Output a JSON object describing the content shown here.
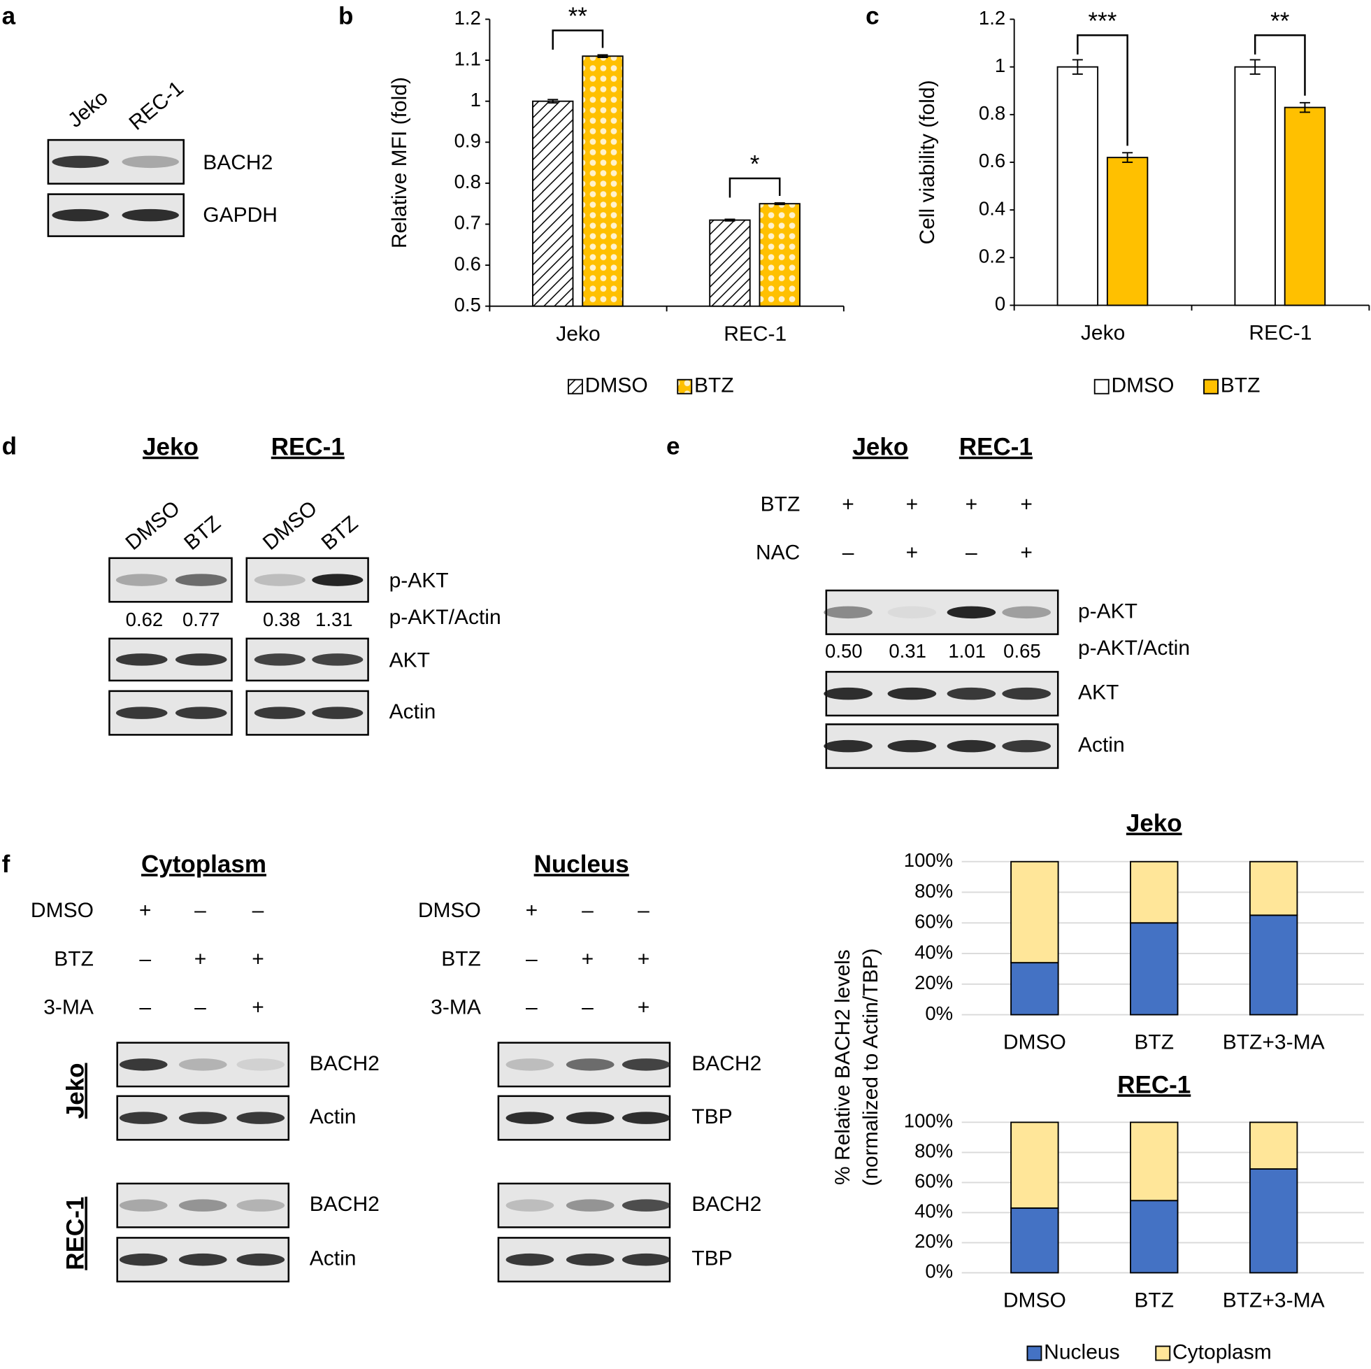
{
  "panel_labels": [
    "a",
    "b",
    "c",
    "d",
    "e",
    "f"
  ],
  "panel_a": {
    "lanes": [
      "Jeko",
      "REC-1"
    ],
    "bands": [
      "BACH2",
      "GAPDH"
    ]
  },
  "panel_d": {
    "groups": [
      "Jeko",
      "REC-1"
    ],
    "lanes": [
      "DMSO",
      "BTZ",
      "DMSO",
      "BTZ"
    ],
    "bands": [
      "p-AKT",
      "AKT",
      "Actin"
    ],
    "ratio_label": "p-AKT/Actin",
    "ratios": [
      "0.62",
      "0.77",
      "0.38",
      "1.31"
    ]
  },
  "panel_e": {
    "groups": [
      "Jeko",
      "REC-1"
    ],
    "treatments": [
      {
        "name": "BTZ",
        "marks": [
          "+",
          "+",
          "+",
          "+"
        ]
      },
      {
        "name": "NAC",
        "marks": [
          "–",
          "+",
          "–",
          "+"
        ]
      }
    ],
    "bands": [
      "p-AKT",
      "AKT",
      "Actin"
    ],
    "ratio_label": "p-AKT/Actin",
    "ratios": [
      "0.50",
      "0.31",
      "1.01",
      "0.65"
    ]
  },
  "panel_f": {
    "cell_lines": [
      "Jeko",
      "REC-1"
    ],
    "fractions": [
      {
        "title": "Cytoplasm",
        "treatments": [
          {
            "name": "DMSO",
            "marks": [
              "+",
              "–",
              "–"
            ]
          },
          {
            "name": "BTZ",
            "marks": [
              "–",
              "+",
              "+"
            ]
          },
          {
            "name": "3-MA",
            "marks": [
              "–",
              "–",
              "+"
            ]
          }
        ],
        "bands": [
          "BACH2",
          "Actin",
          "BACH2",
          "Actin"
        ]
      },
      {
        "title": "Nucleus",
        "treatments": [
          {
            "name": "DMSO",
            "marks": [
              "+",
              "–",
              "–"
            ]
          },
          {
            "name": "BTZ",
            "marks": [
              "–",
              "+",
              "+"
            ]
          },
          {
            "name": "3-MA",
            "marks": [
              "–",
              "–",
              "+"
            ]
          }
        ],
        "bands": [
          "BACH2",
          "TBP",
          "BACH2",
          "TBP"
        ]
      }
    ]
  },
  "chart_data": [
    {
      "type": "bar",
      "ylabel": "Relative MFI (fold)",
      "categories": [
        "Jeko",
        "REC-1"
      ],
      "series": [
        {
          "name": "DMSO",
          "color": "#ffffff",
          "pattern": "hatch",
          "values": [
            1.0,
            0.71
          ],
          "errors": [
            0.004,
            0.002
          ]
        },
        {
          "name": "BTZ",
          "color": "#ffc000",
          "pattern": "dots",
          "values": [
            1.11,
            0.75
          ],
          "errors": [
            0.003,
            0.002
          ]
        }
      ],
      "ylim": [
        0.5,
        1.2
      ],
      "yticks": [
        0.5,
        0.6,
        0.7,
        0.8,
        0.9,
        1,
        1.1,
        1.2
      ],
      "annotations": [
        "**",
        "*"
      ],
      "legend": "bottom"
    },
    {
      "type": "bar",
      "ylabel": "Cell viability (fold)",
      "categories": [
        "Jeko",
        "REC-1"
      ],
      "series": [
        {
          "name": "DMSO",
          "color": "#ffffff",
          "values": [
            1,
            1
          ],
          "errors": [
            0.03,
            0.03
          ]
        },
        {
          "name": "BTZ",
          "color": "#ffc000",
          "values": [
            0.62,
            0.83
          ],
          "errors": [
            0.02,
            0.02
          ]
        }
      ],
      "ylim": [
        0,
        1.2
      ],
      "yticks": [
        0,
        0.2,
        0.4,
        0.6,
        0.8,
        1,
        1.2
      ],
      "annotations": [
        "***",
        "**"
      ],
      "legend": "bottom"
    },
    {
      "type": "stacked_bar",
      "title": "Jeko",
      "ylabel": [
        "% Relative BACH2 levels",
        "(normalized to Actin/TBP)"
      ],
      "categories": [
        "DMSO",
        "BTZ",
        "BTZ+3-MA"
      ],
      "series": [
        {
          "name": "Nucleus",
          "color": "#4472c4",
          "values": [
            34,
            60,
            65
          ]
        },
        {
          "name": "Cytoplasm",
          "color": "#ffe699",
          "values": [
            66,
            40,
            35
          ]
        }
      ],
      "ylim": [
        0,
        100
      ],
      "yticks": [
        {
          "value": 0,
          "label": "0%"
        },
        {
          "value": 20,
          "label": "20%"
        },
        {
          "value": 40,
          "label": "40%"
        },
        {
          "value": 60,
          "label": "60%"
        },
        {
          "value": 80,
          "label": "80%"
        },
        {
          "value": 100,
          "label": "100%"
        }
      ],
      "grid": true,
      "legend": "bottom"
    },
    {
      "type": "stacked_bar",
      "title": "REC-1",
      "categories": [
        "DMSO",
        "BTZ",
        "BTZ+3-MA"
      ],
      "series": [
        {
          "color": "#4472c4",
          "values": [
            43,
            48,
            69
          ]
        },
        {
          "color": "#ffe699",
          "values": [
            57,
            52,
            31
          ]
        }
      ],
      "ylim": [
        0,
        100
      ],
      "yticks": [
        {
          "value": 0,
          "label": "0%"
        },
        {
          "value": 20,
          "label": "20%"
        },
        {
          "value": 40,
          "label": "40%"
        },
        {
          "value": 60,
          "label": "60%"
        },
        {
          "value": 80,
          "label": "80%"
        },
        {
          "value": 100,
          "label": "100%"
        }
      ],
      "grid": true
    }
  ]
}
